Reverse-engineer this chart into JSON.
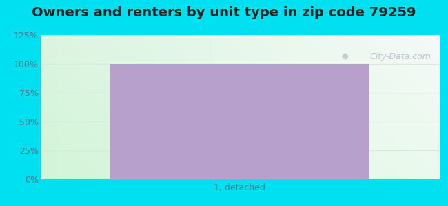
{
  "title": "Owners and renters by unit type in zip code 79259",
  "categories": [
    "1, detached"
  ],
  "values": [
    100
  ],
  "bar_color": "#b8a0cc",
  "bar_width": 0.65,
  "ylim": [
    0,
    125
  ],
  "yticks": [
    0,
    25,
    50,
    75,
    100,
    125
  ],
  "ytick_labels": [
    "0%",
    "25%",
    "50%",
    "75%",
    "100%",
    "125%"
  ],
  "title_fontsize": 14,
  "tick_fontsize": 9,
  "xlabel_fontsize": 9,
  "bg_outer_color": "#00e0f0",
  "watermark_text": "City-Data.com",
  "watermark_color": "#b8c4cc",
  "gridline_color": "#d8e8e0",
  "tick_label_color": "#557788"
}
